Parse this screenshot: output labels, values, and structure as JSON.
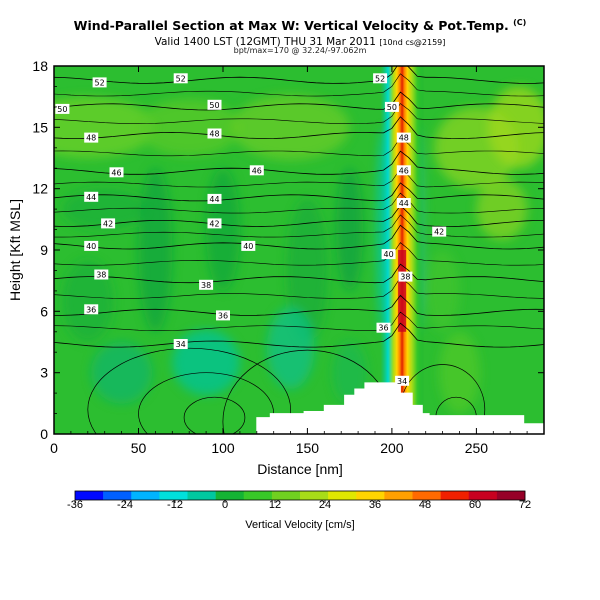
{
  "header": {
    "title": "Wind-Parallel Section at Max W: Vertical Velocity & Pot.Temp.",
    "title_mark": "(C)",
    "valid": "Valid 1400 LST (12GMT) THU 31 Mar 2011",
    "run": "[10nd cs@2159]",
    "info": "bpt/max=170 @ 32.24/-97.062m"
  },
  "chart_data": {
    "type": "heatmap",
    "xlabel": "Distance [nm]",
    "ylabel": "Height [Kft MSL]",
    "xlim": [
      0,
      290
    ],
    "ylim": [
      0,
      18
    ],
    "xticks": [
      0,
      50,
      100,
      150,
      200,
      250
    ],
    "yticks": [
      0,
      3,
      6,
      9,
      12,
      15,
      18
    ],
    "colorbar": {
      "title": "Vertical Velocity [cm/s]",
      "min": -36,
      "max": 72,
      "ticks": [
        -36,
        -24,
        -12,
        0,
        12,
        24,
        36,
        48,
        60,
        72
      ],
      "colors": [
        "#0008ff",
        "#0060ff",
        "#00b4ff",
        "#00e0dc",
        "#00c8a0",
        "#14b434",
        "#38c828",
        "#70d020",
        "#a8dc18",
        "#e0e800",
        "#ffd400",
        "#ffa000",
        "#ff6a00",
        "#f02000",
        "#c80020",
        "#960028"
      ]
    },
    "field": {
      "name": "Vertical Velocity",
      "units": "cm/s",
      "background_range": [
        -6,
        12
      ],
      "updraft_center_x_nm": 206,
      "updraft_max": 72
    },
    "contours": {
      "name": "Pot.Temp.",
      "labels": [
        {
          "x": 27,
          "y": 17.2,
          "value": "52"
        },
        {
          "x": 75,
          "y": 17.4,
          "value": "52"
        },
        {
          "x": 5,
          "y": 15.9,
          "value": "50"
        },
        {
          "x": 95,
          "y": 16.1,
          "value": "50"
        },
        {
          "x": 22,
          "y": 14.5,
          "value": "48"
        },
        {
          "x": 95,
          "y": 14.7,
          "value": "48"
        },
        {
          "x": 37,
          "y": 12.8,
          "value": "46"
        },
        {
          "x": 120,
          "y": 12.9,
          "value": "46"
        },
        {
          "x": 22,
          "y": 11.6,
          "value": "44"
        },
        {
          "x": 95,
          "y": 11.5,
          "value": "44"
        },
        {
          "x": 32,
          "y": 10.3,
          "value": "42"
        },
        {
          "x": 95,
          "y": 10.3,
          "value": "42"
        },
        {
          "x": 22,
          "y": 9.2,
          "value": "40"
        },
        {
          "x": 115,
          "y": 9.2,
          "value": "40"
        },
        {
          "x": 28,
          "y": 7.8,
          "value": "38"
        },
        {
          "x": 90,
          "y": 7.3,
          "value": "38"
        },
        {
          "x": 22,
          "y": 6.1,
          "value": "36"
        },
        {
          "x": 100,
          "y": 5.8,
          "value": "36"
        },
        {
          "x": 75,
          "y": 4.4,
          "value": "34"
        },
        {
          "x": 193,
          "y": 17.4,
          "value": "52"
        },
        {
          "x": 200,
          "y": 16.0,
          "value": "50"
        },
        {
          "x": 207,
          "y": 14.5,
          "value": "48"
        },
        {
          "x": 207,
          "y": 12.9,
          "value": "46"
        },
        {
          "x": 207,
          "y": 11.3,
          "value": "44"
        },
        {
          "x": 228,
          "y": 9.9,
          "value": "42"
        },
        {
          "x": 198,
          "y": 8.8,
          "value": "40"
        },
        {
          "x": 208,
          "y": 7.7,
          "value": "38"
        },
        {
          "x": 195,
          "y": 5.2,
          "value": "36"
        },
        {
          "x": 206,
          "y": 2.6,
          "value": "34"
        }
      ]
    },
    "terrain": [
      [
        120,
        0.8
      ],
      [
        128,
        1.0
      ],
      [
        148,
        1.1
      ],
      [
        160,
        1.4
      ],
      [
        172,
        1.9
      ],
      [
        178,
        2.2
      ],
      [
        184,
        2.5
      ],
      [
        196,
        2.5
      ],
      [
        205,
        2.0
      ],
      [
        212,
        1.4
      ],
      [
        218,
        1.0
      ],
      [
        222,
        0.9
      ],
      [
        275,
        0.9
      ],
      [
        278,
        0.5
      ],
      [
        290,
        0.5
      ]
    ]
  }
}
